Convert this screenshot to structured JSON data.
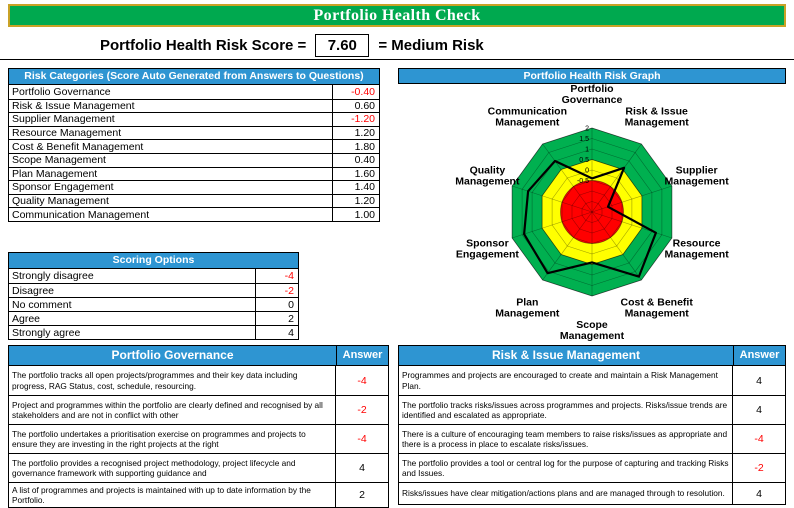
{
  "title": "Portfolio Health Check",
  "score_line": {
    "label": "Portfolio Health Risk Score =",
    "score": "7.60",
    "rating": "= Medium Risk"
  },
  "risk_categories": {
    "header": "Risk Categories (Score Auto Generated from Answers to Questions)",
    "rows": [
      {
        "label": "Portfolio Governance",
        "value": "-0.40"
      },
      {
        "label": "Risk & Issue Management",
        "value": "0.60"
      },
      {
        "label": "Supplier Management",
        "value": "-1.20"
      },
      {
        "label": "Resource Management",
        "value": "1.20"
      },
      {
        "label": "Cost & Benefit Management",
        "value": "1.80"
      },
      {
        "label": "Scope Management",
        "value": "0.40"
      },
      {
        "label": "Plan Management",
        "value": "1.60"
      },
      {
        "label": "Sponsor Engagement",
        "value": "1.40"
      },
      {
        "label": "Quality Management",
        "value": "1.20"
      },
      {
        "label": "Communication Management",
        "value": "1.00"
      }
    ]
  },
  "scoring_options": {
    "header": "Scoring Options",
    "rows": [
      {
        "label": "Strongly disagree",
        "value": "-4"
      },
      {
        "label": "Disagree",
        "value": "-2"
      },
      {
        "label": "No comment",
        "value": "0"
      },
      {
        "label": "Agree",
        "value": "2"
      },
      {
        "label": "Strongly agree",
        "value": "4"
      }
    ]
  },
  "graph": {
    "header": "Portfolio Health Risk Graph"
  },
  "chart_data": {
    "type": "radar",
    "title": "Portfolio Health Risk Graph",
    "categories": [
      "Portfolio Governance",
      "Risk & Issue Management",
      "Supplier Management",
      "Resource Management",
      "Cost & Benefit Management",
      "Scope Management",
      "Plan Management",
      "Sponsor Engagement",
      "Quality Management",
      "Communication Management"
    ],
    "values": [
      -0.4,
      0.6,
      -1.2,
      1.2,
      1.8,
      0.4,
      1.6,
      1.4,
      1.2,
      1.0
    ],
    "axis": {
      "min": -2,
      "max": 2,
      "step": 0.5,
      "tick_labels": [
        "2",
        "1.5",
        "1",
        "0.5",
        "0",
        "-0.5"
      ]
    },
    "zones": [
      {
        "name": "high-risk",
        "color": "#FF0000",
        "to": -0.5,
        "shape": "circle"
      },
      {
        "name": "medium-risk",
        "color": "#FFFF00",
        "to": 0.5,
        "shape": "polygon"
      },
      {
        "name": "healthy",
        "color": "#00B050",
        "to": 2,
        "shape": "polygon"
      }
    ],
    "line_color": "#000000",
    "legend": "none",
    "grid": true
  },
  "question_tables": [
    {
      "header": "Portfolio Governance",
      "answer_header": "Answer",
      "rows": [
        {
          "question": "The portfolio tracks all open projects/programmes and their key data including progress, RAG Status, cost, schedule, resourcing.",
          "answer": "-4"
        },
        {
          "question": "Project and programmes within the portfolio are clearly defined and recognised by all stakeholders and are not in conflict with other",
          "answer": "-2"
        },
        {
          "question": "The portfolio undertakes a prioritisation exercise on programmes and projects to ensure they are investing in the right projects at the right",
          "answer": "-4"
        },
        {
          "question": "The portfolio provides a recognised project methodology, project lifecycle and governance framework with supporting guidance and",
          "answer": "4"
        },
        {
          "question": "A list of programmes and projects is maintained with up to date information by the Portfolio.",
          "answer": "2"
        }
      ]
    },
    {
      "header": "Risk & Issue Management",
      "answer_header": "Answer",
      "rows": [
        {
          "question": "Programmes and projects are encouraged to create and maintain a Risk Management Plan.",
          "answer": "4"
        },
        {
          "question": "The portfolio tracks risks/issues across programmes and projects. Risks/issue trends are identified and escalated as appropriate.",
          "answer": "4"
        },
        {
          "question": "There is a culture of encouraging team members to raise risks/issues as appropriate and there is a process in place to escalate risks/issues.",
          "answer": "-4"
        },
        {
          "question": "The portfolio provides a tool or central log for the purpose of capturing and tracking Risks and Issues.",
          "answer": "-2"
        },
        {
          "question": "Risks/issues have clear mitigation/actions plans and are managed through to resolution.",
          "answer": "4"
        }
      ]
    }
  ],
  "colors": {
    "banner_green": "#00A94F",
    "banner_border_gold": "#C9A227",
    "header_blue": "#2E95D2",
    "negative_red": "#FF0000",
    "zone_green": "#00B050",
    "zone_yellow": "#FFFF00",
    "zone_red": "#FF0000"
  }
}
